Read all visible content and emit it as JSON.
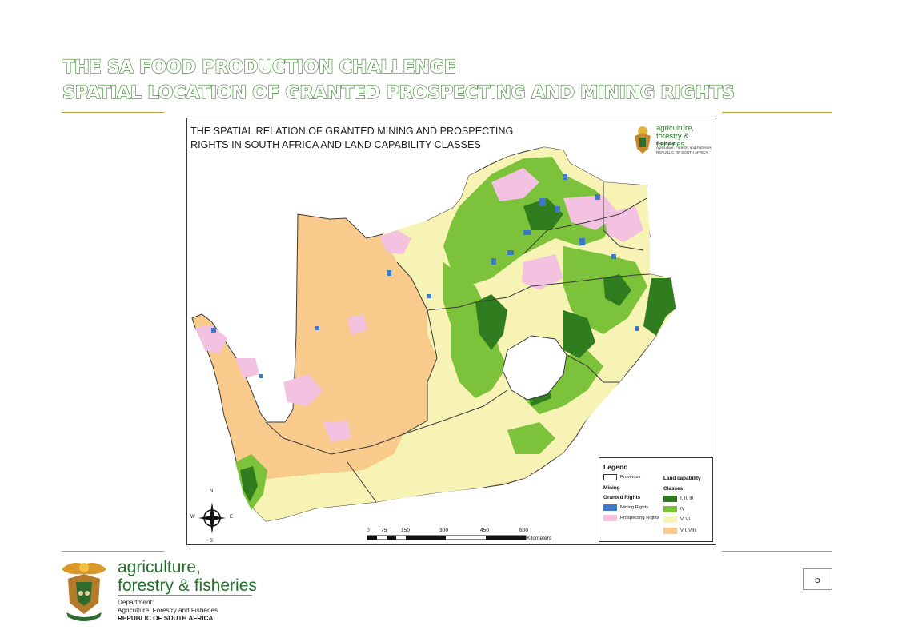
{
  "slide": {
    "title_line1": "THE SA FOOD PRODUCTION CHALLENGE",
    "title_line2": "SPATIAL LOCATION OF GRANTED PROSPECTING AND MINING RIGHTS",
    "page_number": "5",
    "accent_color": "#3d8a30",
    "rule_color": "#b7a33a"
  },
  "map": {
    "title": "THE SPATIAL RELATION OF GRANTED MINING AND PROSPECTING RIGHTS IN SOUTH AFRICA AND LAND CAPABILITY CLASSES",
    "mini_logo": {
      "name": "agriculture, forestry & fisheries",
      "sub_department": "Department:",
      "sub_full": "Agriculture, Forestry and Fisheries",
      "sub_country": "REPUBLIC OF SOUTH AFRICA"
    },
    "legend": {
      "title": "Legend",
      "provinces_label": "Provinces",
      "mining_heading": "Mining",
      "granted_heading": "Granted Rights",
      "mining_rights": "Mining Rights",
      "prospecting_rights": "Prospecting Rights",
      "land_heading": "Land capability",
      "classes_heading": "Classes",
      "classes": [
        {
          "label": "I, II, III",
          "color": "#2f7d1f"
        },
        {
          "label": "IV",
          "color": "#7cc23a"
        },
        {
          "label": "V, VI",
          "color": "#f7f3b5"
        },
        {
          "label": "VII, VIII",
          "color": "#f8cb8c"
        }
      ],
      "mining_color": "#3f77c9",
      "prospecting_color": "#f2c2e0"
    },
    "scale": {
      "ticks": [
        "0",
        "75",
        "150",
        "300",
        "450",
        "600"
      ],
      "unit": "Kilometers"
    },
    "compass": {
      "n": "N",
      "s": "S",
      "e": "E",
      "w": "W"
    }
  },
  "footer_logo": {
    "name_line1": "agriculture,",
    "name_line2": "forestry & fisheries",
    "department": "Department:",
    "department_full": "Agriculture, Forestry and Fisheries",
    "country": "REPUBLIC OF SOUTH AFRICA"
  }
}
